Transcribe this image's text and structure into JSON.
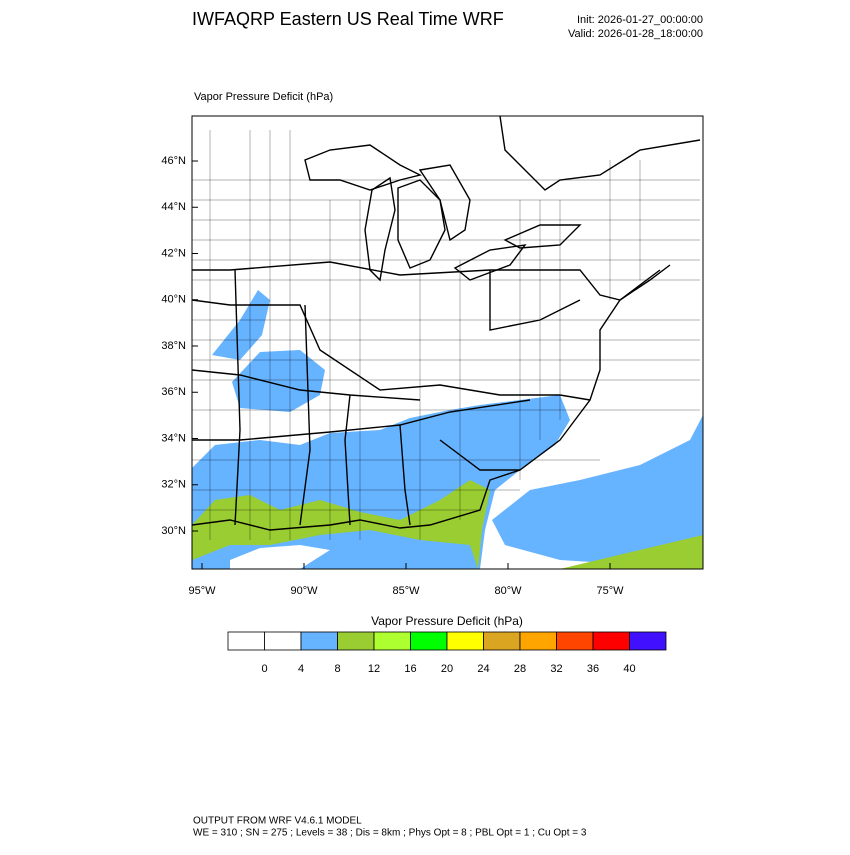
{
  "header": {
    "title": "IWFAQRP Eastern US Real Time WRF",
    "init": "Init: 2026-01-27_00:00:00",
    "valid": "Valid: 2026-01-28_18:00:00"
  },
  "map": {
    "subtitle": "Vapor Pressure Deficit   (hPa)",
    "lat_labels": [
      "46°N",
      "44°N",
      "42°N",
      "40°N",
      "38°N",
      "36°N",
      "34°N",
      "32°N",
      "30°N"
    ],
    "lon_labels": [
      "95°W",
      "90°W",
      "85°W",
      "80°W",
      "75°W"
    ]
  },
  "colorbar": {
    "title": "Vapor Pressure Deficit  (hPa)",
    "levels": [
      0,
      4,
      8,
      12,
      16,
      20,
      24,
      28,
      32,
      36,
      40
    ],
    "colors": [
      "#ffffff",
      "#ffffff",
      "#66b3ff",
      "#9acd32",
      "#adff2f",
      "#00ff00",
      "#ffff00",
      "#daa520",
      "#ffa500",
      "#ff4500",
      "#ff0000",
      "#4010ff"
    ]
  },
  "footer": {
    "line1": "OUTPUT FROM WRF V4.6.1 MODEL",
    "line2": "WE = 310 ; SN = 275 ; Levels = 38 ; Dis = 8km ; Phys Opt = 8 ; PBL Opt = 1 ; Cu Opt = 3"
  }
}
